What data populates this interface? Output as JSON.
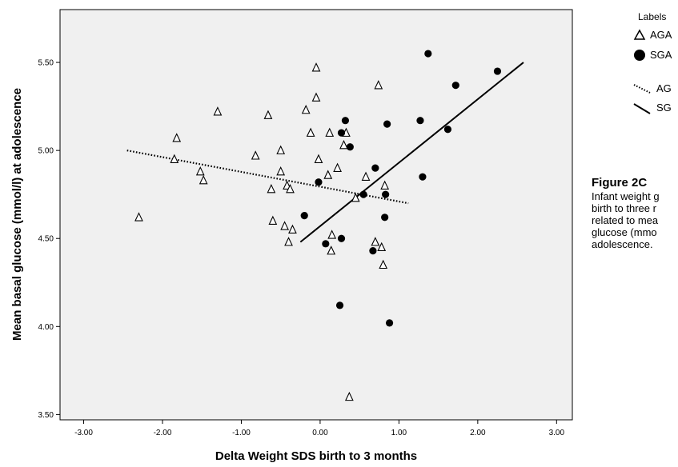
{
  "chart_data": {
    "type": "scatter",
    "xlabel": "Delta Weight SDS birth to 3 months",
    "ylabel": "Mean basal glucose (mmol/l) at adolescence",
    "xlim": [
      -3.3,
      3.2
    ],
    "ylim": [
      3.47,
      5.8
    ],
    "x_ticks": [
      -3,
      -2,
      -1,
      0,
      1,
      2,
      3
    ],
    "x_tick_labels": [
      "-3.00",
      "-2.00",
      "-1.00",
      "0.00",
      "1.00",
      "2.00",
      "3.00"
    ],
    "y_ticks": [
      3.5,
      4.0,
      4.5,
      5.0,
      5.5
    ],
    "y_tick_labels": [
      "3.50",
      "4.00",
      "4.50",
      "5.00",
      "5.50"
    ],
    "grid": false,
    "legend_placement": "top-right",
    "legend_title": "Labels",
    "series": [
      {
        "name": "AGA",
        "marker": "open-triangle",
        "color": "#000000",
        "points": [
          [
            -2.3,
            4.62
          ],
          [
            -1.82,
            5.07
          ],
          [
            -1.85,
            4.95
          ],
          [
            -1.52,
            4.88
          ],
          [
            -1.48,
            4.83
          ],
          [
            -1.3,
            5.22
          ],
          [
            -0.82,
            4.97
          ],
          [
            -0.66,
            5.2
          ],
          [
            -0.62,
            4.78
          ],
          [
            -0.6,
            4.6
          ],
          [
            -0.5,
            5.0
          ],
          [
            -0.5,
            4.88
          ],
          [
            -0.45,
            4.57
          ],
          [
            -0.42,
            4.8
          ],
          [
            -0.38,
            4.78
          ],
          [
            -0.4,
            4.48
          ],
          [
            -0.35,
            4.55
          ],
          [
            -0.18,
            5.23
          ],
          [
            -0.12,
            5.1
          ],
          [
            -0.05,
            5.47
          ],
          [
            -0.05,
            5.3
          ],
          [
            -0.02,
            4.95
          ],
          [
            0.1,
            4.86
          ],
          [
            0.12,
            5.1
          ],
          [
            0.14,
            4.43
          ],
          [
            0.15,
            4.52
          ],
          [
            0.22,
            4.9
          ],
          [
            0.3,
            5.03
          ],
          [
            0.33,
            5.1
          ],
          [
            0.37,
            3.6
          ],
          [
            0.45,
            4.73
          ],
          [
            0.58,
            4.85
          ],
          [
            0.7,
            4.48
          ],
          [
            0.74,
            5.37
          ],
          [
            0.78,
            4.45
          ],
          [
            0.8,
            4.35
          ],
          [
            0.82,
            4.8
          ]
        ]
      },
      {
        "name": "SGA",
        "marker": "filled-circle",
        "color": "#000000",
        "points": [
          [
            -0.2,
            4.63
          ],
          [
            -0.02,
            4.82
          ],
          [
            0.07,
            4.47
          ],
          [
            0.25,
            4.12
          ],
          [
            0.27,
            5.1
          ],
          [
            0.27,
            4.5
          ],
          [
            0.32,
            5.17
          ],
          [
            0.38,
            5.02
          ],
          [
            0.55,
            4.75
          ],
          [
            0.67,
            4.43
          ],
          [
            0.7,
            4.9
          ],
          [
            0.82,
            4.62
          ],
          [
            0.83,
            4.75
          ],
          [
            0.85,
            5.15
          ],
          [
            0.88,
            4.02
          ],
          [
            1.27,
            5.17
          ],
          [
            1.3,
            4.85
          ],
          [
            1.37,
            5.55
          ],
          [
            1.62,
            5.12
          ],
          [
            1.72,
            5.37
          ],
          [
            2.25,
            5.45
          ]
        ]
      }
    ],
    "fit_lines": [
      {
        "series": "AGA",
        "style": "dotted",
        "x": [
          -2.45,
          1.12
        ],
        "y": [
          5.0,
          4.7
        ]
      },
      {
        "series": "SGA",
        "style": "solid",
        "x": [
          -0.25,
          2.58
        ],
        "y": [
          4.48,
          5.5
        ]
      }
    ],
    "annotation_title": "Figure 2C",
    "annotation_lines": [
      "Infant weight g",
      "birth to three r",
      "related to mea",
      "glucose (mmo",
      "adolescence."
    ]
  },
  "legend": {
    "title": "Labels",
    "items": [
      {
        "label": "AGA",
        "symbol": "open-triangle"
      },
      {
        "label": "SGA",
        "symbol": "filled-circle"
      },
      {
        "label": "AG",
        "symbol": "dotted-line"
      },
      {
        "label": "SG",
        "symbol": "solid-line"
      }
    ]
  },
  "colors": {
    "plot_background": "#f0f0f0",
    "ink": "#000000"
  }
}
